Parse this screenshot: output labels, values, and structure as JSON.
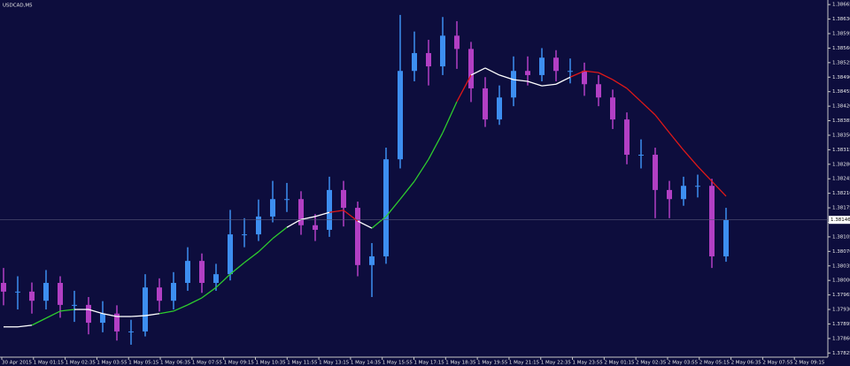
{
  "chart_data": {
    "type": "candlestick",
    "title": "USDCAD,M5",
    "background": "#0d0d3d",
    "up_color": "#3d8ef0",
    "down_color": "#b23fc4",
    "x_labels": [
      "30 Apr 2015",
      "1 May 01:15",
      "1 May 02:35",
      "1 May 03:55",
      "1 May 05:15",
      "1 May 06:35",
      "1 May 07:55",
      "1 May 09:15",
      "1 May 10:35",
      "1 May 11:55",
      "1 May 13:15",
      "1 May 14:35",
      "1 May 15:55",
      "1 May 17:15",
      "1 May 18:35",
      "1 May 19:55",
      "1 May 21:15",
      "1 May 22:35",
      "1 May 23:55",
      "2 May 01:15",
      "2 May 02:35",
      "2 May 03:55",
      "2 May 05:15",
      "2 May 06:35",
      "2 May 07:55",
      "2 May 09:15"
    ],
    "open": [
      1.37994,
      1.37973,
      1.37973,
      1.37951,
      1.37994,
      1.37941,
      1.37941,
      1.37898,
      1.3792,
      1.37877,
      1.37877,
      1.37983,
      1.37951,
      1.37994,
      1.38047,
      1.37994,
      1.38015,
      1.38111,
      1.38111,
      1.38154,
      1.38196,
      1.38196,
      1.38133,
      1.38122,
      1.38218,
      1.38175,
      1.38037,
      1.38058,
      1.38292,
      1.38505,
      1.38548,
      1.38516,
      1.3859,
      1.38558,
      1.38463,
      1.38388,
      1.38441,
      1.38505,
      1.38495,
      1.38537,
      1.38505,
      1.38505,
      1.38473,
      1.38441,
      1.38388,
      1.38303,
      1.38303,
      1.38218,
      1.38196,
      1.38228,
      1.38228,
      1.38058
    ],
    "high": [
      1.3803,
      1.3801,
      1.37995,
      1.38025,
      1.3801,
      1.37975,
      1.3796,
      1.3795,
      1.3794,
      1.37905,
      1.38015,
      1.38005,
      1.3802,
      1.3808,
      1.38065,
      1.3804,
      1.3817,
      1.3815,
      1.38195,
      1.3824,
      1.38235,
      1.38215,
      1.3816,
      1.3825,
      1.3824,
      1.3819,
      1.3809,
      1.3832,
      1.3864,
      1.386,
      1.3858,
      1.38635,
      1.38625,
      1.38575,
      1.3849,
      1.3847,
      1.3854,
      1.3854,
      1.3856,
      1.38555,
      1.38535,
      1.38525,
      1.38495,
      1.3846,
      1.38405,
      1.3834,
      1.3832,
      1.3824,
      1.3825,
      1.38255,
      1.38245,
      1.38175
    ],
    "low": [
      1.3794,
      1.3793,
      1.3792,
      1.3793,
      1.3791,
      1.379,
      1.3787,
      1.37875,
      1.37855,
      1.37845,
      1.37865,
      1.37925,
      1.3793,
      1.37975,
      1.3797,
      1.37975,
      1.38,
      1.3808,
      1.38095,
      1.3814,
      1.38165,
      1.3811,
      1.38095,
      1.38105,
      1.3813,
      1.3801,
      1.3796,
      1.3804,
      1.3827,
      1.3848,
      1.3847,
      1.38495,
      1.3851,
      1.3843,
      1.3837,
      1.38375,
      1.3842,
      1.3847,
      1.3848,
      1.3848,
      1.38475,
      1.38445,
      1.3842,
      1.38365,
      1.3828,
      1.3827,
      1.3815,
      1.3815,
      1.3818,
      1.382,
      1.3803,
      1.38045
    ],
    "close": [
      1.37973,
      1.37973,
      1.37951,
      1.37994,
      1.37941,
      1.37941,
      1.37898,
      1.3792,
      1.37877,
      1.37877,
      1.37983,
      1.37951,
      1.37994,
      1.38047,
      1.37994,
      1.38015,
      1.38111,
      1.38111,
      1.38154,
      1.38196,
      1.38196,
      1.38133,
      1.38122,
      1.38218,
      1.38175,
      1.38037,
      1.38058,
      1.38292,
      1.38505,
      1.38548,
      1.38516,
      1.3859,
      1.38558,
      1.38463,
      1.38388,
      1.38441,
      1.38505,
      1.38495,
      1.38537,
      1.38505,
      1.38505,
      1.38473,
      1.38441,
      1.38388,
      1.38303,
      1.38303,
      1.38218,
      1.38196,
      1.38228,
      1.38228,
      1.38058,
      1.38146
    ],
    "moving_average": {
      "values": [
        1.37888,
        1.37888,
        1.37892,
        1.37909,
        1.37926,
        1.3793,
        1.3793,
        1.3792,
        1.37913,
        1.37913,
        1.37915,
        1.3792,
        1.37926,
        1.37941,
        1.37958,
        1.37983,
        1.38015,
        1.38043,
        1.38069,
        1.38101,
        1.38128,
        1.38147,
        1.38154,
        1.38164,
        1.38169,
        1.38143,
        1.38126,
        1.38154,
        1.38196,
        1.38239,
        1.38292,
        1.38356,
        1.38431,
        1.38495,
        1.38512,
        1.38495,
        1.38484,
        1.3848,
        1.38469,
        1.38473,
        1.3849,
        1.38505,
        1.38501,
        1.38484,
        1.38463,
        1.38431,
        1.38399,
        1.38356,
        1.38314,
        1.38275,
        1.38239,
        1.38203
      ],
      "colors": [
        "#ffffff",
        "#ffffff",
        "#2ecc2e",
        "#2ecc2e",
        "#2ecc2e",
        "#ffffff",
        "#ffffff",
        "#ffffff",
        "#ffffff",
        "#ffffff",
        "#ffffff",
        "#2ecc2e",
        "#2ecc2e",
        "#2ecc2e",
        "#2ecc2e",
        "#2ecc2e",
        "#2ecc2e",
        "#2ecc2e",
        "#2ecc2e",
        "#2ecc2e",
        "#ffffff",
        "#ffffff",
        "#ffffff",
        "#e01818",
        "#e01818",
        "#ffffff",
        "#2ecc2e",
        "#2ecc2e",
        "#2ecc2e",
        "#2ecc2e",
        "#2ecc2e",
        "#2ecc2e",
        "#e01818",
        "#ffffff",
        "#ffffff",
        "#ffffff",
        "#ffffff",
        "#ffffff",
        "#ffffff",
        "#ffffff",
        "#e01818",
        "#e01818",
        "#e01818",
        "#e01818",
        "#e01818",
        "#e01818",
        "#e01818",
        "#e01818",
        "#e01818",
        "#e01818",
        "#e01818",
        "#e01818"
      ]
    },
    "current_price": 1.38146,
    "ylim": [
      1.37815,
      1.38676
    ],
    "yticks": [
      {
        "value": 1.38665,
        "label": "1.38665"
      },
      {
        "value": 1.3863,
        "label": "1.38630"
      },
      {
        "value": 1.38595,
        "label": "1.38595"
      },
      {
        "value": 1.3856,
        "label": "1.38560"
      },
      {
        "value": 1.38525,
        "label": "1.38525"
      },
      {
        "value": 1.3849,
        "label": "1.38490"
      },
      {
        "value": 1.38455,
        "label": "1.38455"
      },
      {
        "value": 1.3842,
        "label": "1.38420"
      },
      {
        "value": 1.38385,
        "label": "1.38385"
      },
      {
        "value": 1.3835,
        "label": "1.38350"
      },
      {
        "value": 1.38315,
        "label": "1.38315"
      },
      {
        "value": 1.3828,
        "label": "1.38280"
      },
      {
        "value": 1.38245,
        "label": "1.38245"
      },
      {
        "value": 1.3821,
        "label": "1.38210"
      },
      {
        "value": 1.38175,
        "label": "1.38175"
      },
      {
        "value": 1.3814,
        "label": "1.38140"
      },
      {
        "value": 1.38105,
        "label": "1.38105"
      },
      {
        "value": 1.3807,
        "label": "1.38070"
      },
      {
        "value": 1.38035,
        "label": "1.38035"
      },
      {
        "value": 1.38,
        "label": "1.38000"
      },
      {
        "value": 1.37965,
        "label": "1.37965"
      },
      {
        "value": 1.3793,
        "label": "1.37930"
      },
      {
        "value": 1.37895,
        "label": "1.37895"
      },
      {
        "value": 1.3786,
        "label": "1.37860"
      },
      {
        "value": 1.37825,
        "label": "1.37825"
      }
    ]
  }
}
